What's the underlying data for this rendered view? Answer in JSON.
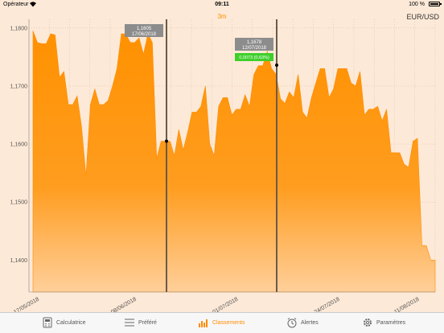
{
  "status_bar": {
    "carrier": "Opérateur",
    "time": "09:11",
    "battery": "100 %"
  },
  "range": "3m",
  "pair": "EUR/USD",
  "cursors": [
    {
      "value": "1,1605",
      "date": "17/06/2018"
    },
    {
      "value": "1,1678",
      "date": "12/07/2018",
      "delta": "0,0073 (0,63%)"
    }
  ],
  "colors": {
    "accent": "#ff8c00",
    "background": "#fde9d7",
    "delta_positive": "#3ecf2a",
    "cursor_label": "#8c8c8c"
  },
  "tabs": [
    {
      "label": "Calculatrice",
      "icon": "calculator-icon",
      "active": false
    },
    {
      "label": "Préféré",
      "icon": "list-icon",
      "active": false
    },
    {
      "label": "Classements",
      "icon": "bar-chart-icon",
      "active": true
    },
    {
      "label": "Alertes",
      "icon": "alarm-clock-icon",
      "active": false
    },
    {
      "label": "Paramètres",
      "icon": "gear-icon",
      "active": false
    }
  ],
  "chart_data": {
    "type": "area",
    "title": "",
    "xlabel": "",
    "ylabel": "",
    "ylim": [
      1.1345,
      1.1815
    ],
    "y_ticks": [
      "1,1400",
      "1,1500",
      "1,1600",
      "1,1700",
      "1,1800"
    ],
    "x_ticks": [
      "17/05/2018",
      "08/06/2018",
      "01/07/2018",
      "24/07/2018",
      "11/08/2018"
    ],
    "grid": true,
    "series": [
      {
        "x": [
          "2018-05-17",
          "2018-05-18",
          "2018-05-19",
          "2018-05-20",
          "2018-05-21",
          "2018-05-22",
          "2018-05-23",
          "2018-05-24",
          "2018-05-25",
          "2018-05-26",
          "2018-05-27",
          "2018-05-28",
          "2018-05-29",
          "2018-05-30",
          "2018-05-31",
          "2018-06-01",
          "2018-06-02",
          "2018-06-03",
          "2018-06-04",
          "2018-06-05",
          "2018-06-06",
          "2018-06-07",
          "2018-06-08",
          "2018-06-09",
          "2018-06-10",
          "2018-06-11",
          "2018-06-12",
          "2018-06-13",
          "2018-06-14",
          "2018-06-15",
          "2018-06-16",
          "2018-06-17",
          "2018-06-18",
          "2018-06-19",
          "2018-06-20",
          "2018-06-21",
          "2018-06-22",
          "2018-06-23",
          "2018-06-24",
          "2018-06-25",
          "2018-06-26",
          "2018-06-27",
          "2018-06-28",
          "2018-06-29",
          "2018-06-30",
          "2018-07-01",
          "2018-07-02",
          "2018-07-03",
          "2018-07-04",
          "2018-07-05",
          "2018-07-06",
          "2018-07-07",
          "2018-07-08",
          "2018-07-09",
          "2018-07-10",
          "2018-07-11",
          "2018-07-12",
          "2018-07-13",
          "2018-07-14",
          "2018-07-15",
          "2018-07-16",
          "2018-07-17",
          "2018-07-18",
          "2018-07-19",
          "2018-07-20",
          "2018-07-21",
          "2018-07-22",
          "2018-07-23",
          "2018-07-24",
          "2018-07-25",
          "2018-07-26",
          "2018-07-27",
          "2018-07-28",
          "2018-07-29",
          "2018-07-30",
          "2018-07-31",
          "2018-08-01",
          "2018-08-02",
          "2018-08-03",
          "2018-08-04",
          "2018-08-05",
          "2018-08-06",
          "2018-08-07",
          "2018-08-08",
          "2018-08-09",
          "2018-08-10",
          "2018-08-11",
          "2018-08-12",
          "2018-08-13",
          "2018-08-14",
          "2018-08-15",
          "2018-08-16"
        ],
        "values": [
          1.1795,
          1.1775,
          1.1773,
          1.1773,
          1.179,
          1.1788,
          1.1715,
          1.1725,
          1.1668,
          1.1668,
          1.1683,
          1.163,
          1.1545,
          1.1668,
          1.1695,
          1.1668,
          1.1668,
          1.1675,
          1.17,
          1.173,
          1.179,
          1.179,
          1.1775,
          1.1775,
          1.1783,
          1.1755,
          1.179,
          1.1775,
          1.1575,
          1.1605,
          1.1605,
          1.1605,
          1.158,
          1.1625,
          1.159,
          1.162,
          1.1655,
          1.1655,
          1.1665,
          1.17,
          1.16,
          1.158,
          1.1665,
          1.168,
          1.168,
          1.165,
          1.166,
          1.166,
          1.1685,
          1.1665,
          1.172,
          1.1735,
          1.1735,
          1.176,
          1.173,
          1.172,
          1.1678,
          1.167,
          1.169,
          1.168,
          1.172,
          1.1655,
          1.1645,
          1.168,
          1.1705,
          1.173,
          1.173,
          1.168,
          1.1695,
          1.173,
          1.173,
          1.173,
          1.1705,
          1.17,
          1.1725,
          1.165,
          1.166,
          1.166,
          1.1665,
          1.164,
          1.166,
          1.1585,
          1.1585,
          1.1585,
          1.1565,
          1.156,
          1.1605,
          1.161,
          1.1425,
          1.1425,
          1.14,
          1.14
        ]
      }
    ]
  }
}
